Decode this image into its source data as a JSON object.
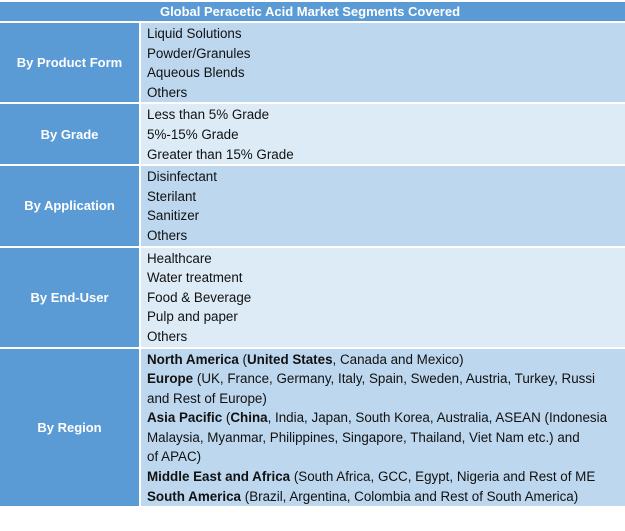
{
  "title": "Global Peracetic Acid Market Segments Covered",
  "colors": {
    "header_bg": "#5b9bd5",
    "row_dark": "#bdd7ee",
    "row_light": "#ddebf7"
  },
  "segments": [
    {
      "category": "By Product Form",
      "shade": "dark",
      "lines": [
        [
          {
            "text": "Liquid Solutions"
          }
        ],
        [
          {
            "text": "Powder/Granules"
          }
        ],
        [
          {
            "text": "Aqueous  Blends"
          }
        ],
        [
          {
            "text": "Others"
          }
        ]
      ]
    },
    {
      "category": "By Grade",
      "shade": "light",
      "lines": [
        [
          {
            "text": "Less than 5% Grade"
          }
        ],
        [
          {
            "text": "5%-15% Grade"
          }
        ],
        [
          {
            "text": "Greater than 15% Grade"
          }
        ]
      ]
    },
    {
      "category": "By Application",
      "shade": "dark",
      "lines": [
        [
          {
            "text": "Disinfectant"
          }
        ],
        [
          {
            "text": "Sterilant"
          }
        ],
        [
          {
            "text": "Sanitizer"
          }
        ],
        [
          {
            "text": "Others"
          }
        ]
      ]
    },
    {
      "category": "By End-User",
      "shade": "light",
      "lines": [
        [
          {
            "text": "Healthcare"
          }
        ],
        [
          {
            "text": "Water treatment"
          }
        ],
        [
          {
            "text": "Food & Beverage"
          }
        ],
        [
          {
            "text": "Pulp and paper"
          }
        ],
        [
          {
            "text": "Others"
          }
        ]
      ]
    },
    {
      "category": "By Region",
      "shade": "dark",
      "lines": [
        [
          {
            "text": "North America",
            "bold": true
          },
          {
            "text": " ("
          },
          {
            "text": "United States",
            "bold": true
          },
          {
            "text": ", Canada and Mexico)"
          }
        ],
        [
          {
            "text": "Europe",
            "bold": true
          },
          {
            "text": " (UK, France, Germany, Italy, Spain, Sweden, Austria, Turkey, Russi"
          }
        ],
        [
          {
            "text": "and Rest of Europe)"
          }
        ],
        [
          {
            "text": "Asia Pacific",
            "bold": true
          },
          {
            "text": " ("
          },
          {
            "text": "China",
            "bold": true
          },
          {
            "text": ", India, Japan, South Korea, Australia, ASEAN (Indonesia"
          }
        ],
        [
          {
            "text": "Malaysia, Myanmar, Philippines, Singapore, Thailand, Viet Nam etc.) and"
          }
        ],
        [
          {
            "text": "of APAC)"
          }
        ],
        [
          {
            "text": "Middle East and Africa",
            "bold": true
          },
          {
            "text": " (South Africa, GCC, Egypt, Nigeria and Rest of ME"
          }
        ],
        [
          {
            "text": "South America",
            "bold": true
          },
          {
            "text": " (Brazil, Argentina, Colombia and Rest of South America)"
          }
        ]
      ]
    }
  ]
}
